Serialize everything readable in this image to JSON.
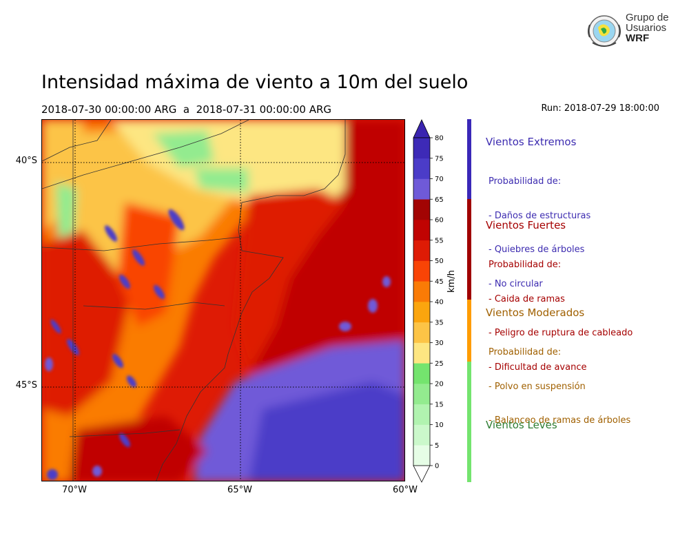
{
  "title": "Intensidad máxima de viento a 10m del suelo",
  "subtitle": "2018-07-30 00:00:00 ARG  a  2018-07-31 00:00:00 ARG",
  "run": "Run: 2018-07-29 18:00:00",
  "logo": {
    "line1": "Grupo de",
    "line2": "Usuarios",
    "line3": "WRF"
  },
  "axes": {
    "lat_labels": [
      {
        "label": "40°S",
        "value": -40
      },
      {
        "label": "45°S",
        "value": -45
      }
    ],
    "lon_labels": [
      {
        "label": "70°W",
        "value": -70
      },
      {
        "label": "65°W",
        "value": -65
      },
      {
        "label": "60°W",
        "value": -60
      }
    ],
    "lon_range": [
      -71,
      -60
    ],
    "lat_range": [
      -47.1,
      -39
    ]
  },
  "colorbar": {
    "unit": "km/h",
    "ticks": [
      "0",
      "5",
      "10",
      "15",
      "20",
      "25",
      "30",
      "35",
      "40",
      "45",
      "50",
      "55",
      "60",
      "65",
      "70",
      "75",
      "80"
    ],
    "colors": [
      "#e6fde6",
      "#cbf8cb",
      "#b1f3b0",
      "#93eb8f",
      "#74e46e",
      "#fde682",
      "#fcc446",
      "#fba50e",
      "#fa7b06",
      "#f94406",
      "#de1b05",
      "#c00302",
      "#a20403",
      "#6f5ad8",
      "#4b3cc8",
      "#3d2ab7"
    ],
    "extend_low": "#ffffff",
    "extend_high": "#3a24b0"
  },
  "categories": [
    {
      "title": "Vientos Extremos",
      "color": "#3c2bb0",
      "bar_color": "#3a28b8",
      "lines": [
        "Probabilidad de:",
        "- Daños de estructuras",
        "- Quiebres de árboles",
        "- No circular"
      ]
    },
    {
      "title": "Vientos Fuertes",
      "color": "#a50000",
      "bar_color": "#a00000",
      "lines": [
        "Probabilidad de:",
        "- Caida de ramas",
        "- Peligro de ruptura de cableado",
        "- Dificultad de avance"
      ]
    },
    {
      "title": "Vientos Moderados",
      "color": "#a06000",
      "bar_color": "#ff9c00",
      "lines": [
        "Probabilidad de:",
        "- Polvo en suspensión",
        "- Balanceo de ramas de árboles"
      ]
    },
    {
      "title": "Vientos Leves",
      "color": "#2e7d32",
      "bar_color": "#74e46e",
      "lines": []
    }
  ]
}
